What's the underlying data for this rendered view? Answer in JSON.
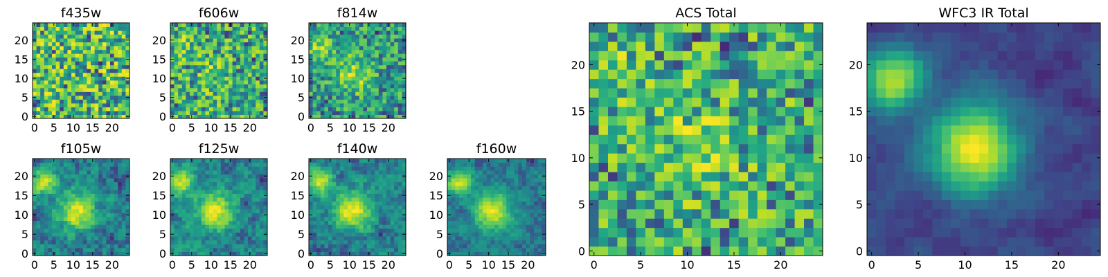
{
  "chart_data": [
    {
      "type": "heatmap",
      "title": "f435w",
      "colormap": "viridis",
      "xticks": [
        "0",
        "5",
        "10",
        "15",
        "20"
      ],
      "yticks": [
        "0",
        "5",
        "10",
        "15",
        "20"
      ],
      "xlim": [
        0,
        24
      ],
      "ylim": [
        0,
        24
      ]
    },
    {
      "type": "heatmap",
      "title": "f606w",
      "colormap": "viridis",
      "xticks": [
        "0",
        "5",
        "10",
        "15",
        "20"
      ],
      "yticks": [
        "0",
        "5",
        "10",
        "15",
        "20"
      ],
      "xlim": [
        0,
        24
      ],
      "ylim": [
        0,
        24
      ]
    },
    {
      "type": "heatmap",
      "title": "f814w",
      "colormap": "viridis",
      "xticks": [
        "0",
        "5",
        "10",
        "15",
        "20"
      ],
      "yticks": [
        "0",
        "5",
        "10",
        "15",
        "20"
      ],
      "xlim": [
        0,
        24
      ],
      "ylim": [
        0,
        24
      ]
    },
    {
      "type": "heatmap",
      "title": "f105w",
      "colormap": "viridis",
      "xticks": [
        "0",
        "5",
        "10",
        "15",
        "20"
      ],
      "yticks": [
        "0",
        "5",
        "10",
        "15",
        "20"
      ],
      "xlim": [
        0,
        24
      ],
      "ylim": [
        0,
        24
      ]
    },
    {
      "type": "heatmap",
      "title": "f125w",
      "colormap": "viridis",
      "xticks": [
        "0",
        "5",
        "10",
        "15",
        "20"
      ],
      "yticks": [
        "0",
        "5",
        "10",
        "15",
        "20"
      ],
      "xlim": [
        0,
        24
      ],
      "ylim": [
        0,
        24
      ]
    },
    {
      "type": "heatmap",
      "title": "f140w",
      "colormap": "viridis",
      "xticks": [
        "0",
        "5",
        "10",
        "15",
        "20"
      ],
      "yticks": [
        "0",
        "5",
        "10",
        "15",
        "20"
      ],
      "xlim": [
        0,
        24
      ],
      "ylim": [
        0,
        24
      ]
    },
    {
      "type": "heatmap",
      "title": "f160w",
      "colormap": "viridis",
      "xticks": [
        "0",
        "5",
        "10",
        "15",
        "20"
      ],
      "yticks": [
        "0",
        "5",
        "10",
        "15",
        "20"
      ],
      "xlim": [
        0,
        24
      ],
      "ylim": [
        0,
        24
      ]
    },
    {
      "type": "heatmap",
      "title": "ACS Total",
      "colormap": "viridis",
      "xticks": [
        "0",
        "5",
        "10",
        "15",
        "20"
      ],
      "yticks": [
        "0",
        "5",
        "10",
        "15",
        "20"
      ],
      "xlim": [
        0,
        24
      ],
      "ylim": [
        0,
        24
      ]
    },
    {
      "type": "heatmap",
      "title": "WFC3 IR Total",
      "colormap": "viridis",
      "xticks": [
        "0",
        "5",
        "10",
        "15",
        "20"
      ],
      "yticks": [
        "0",
        "5",
        "10",
        "15",
        "20"
      ],
      "xlim": [
        0,
        24
      ],
      "ylim": [
        0,
        24
      ]
    }
  ]
}
